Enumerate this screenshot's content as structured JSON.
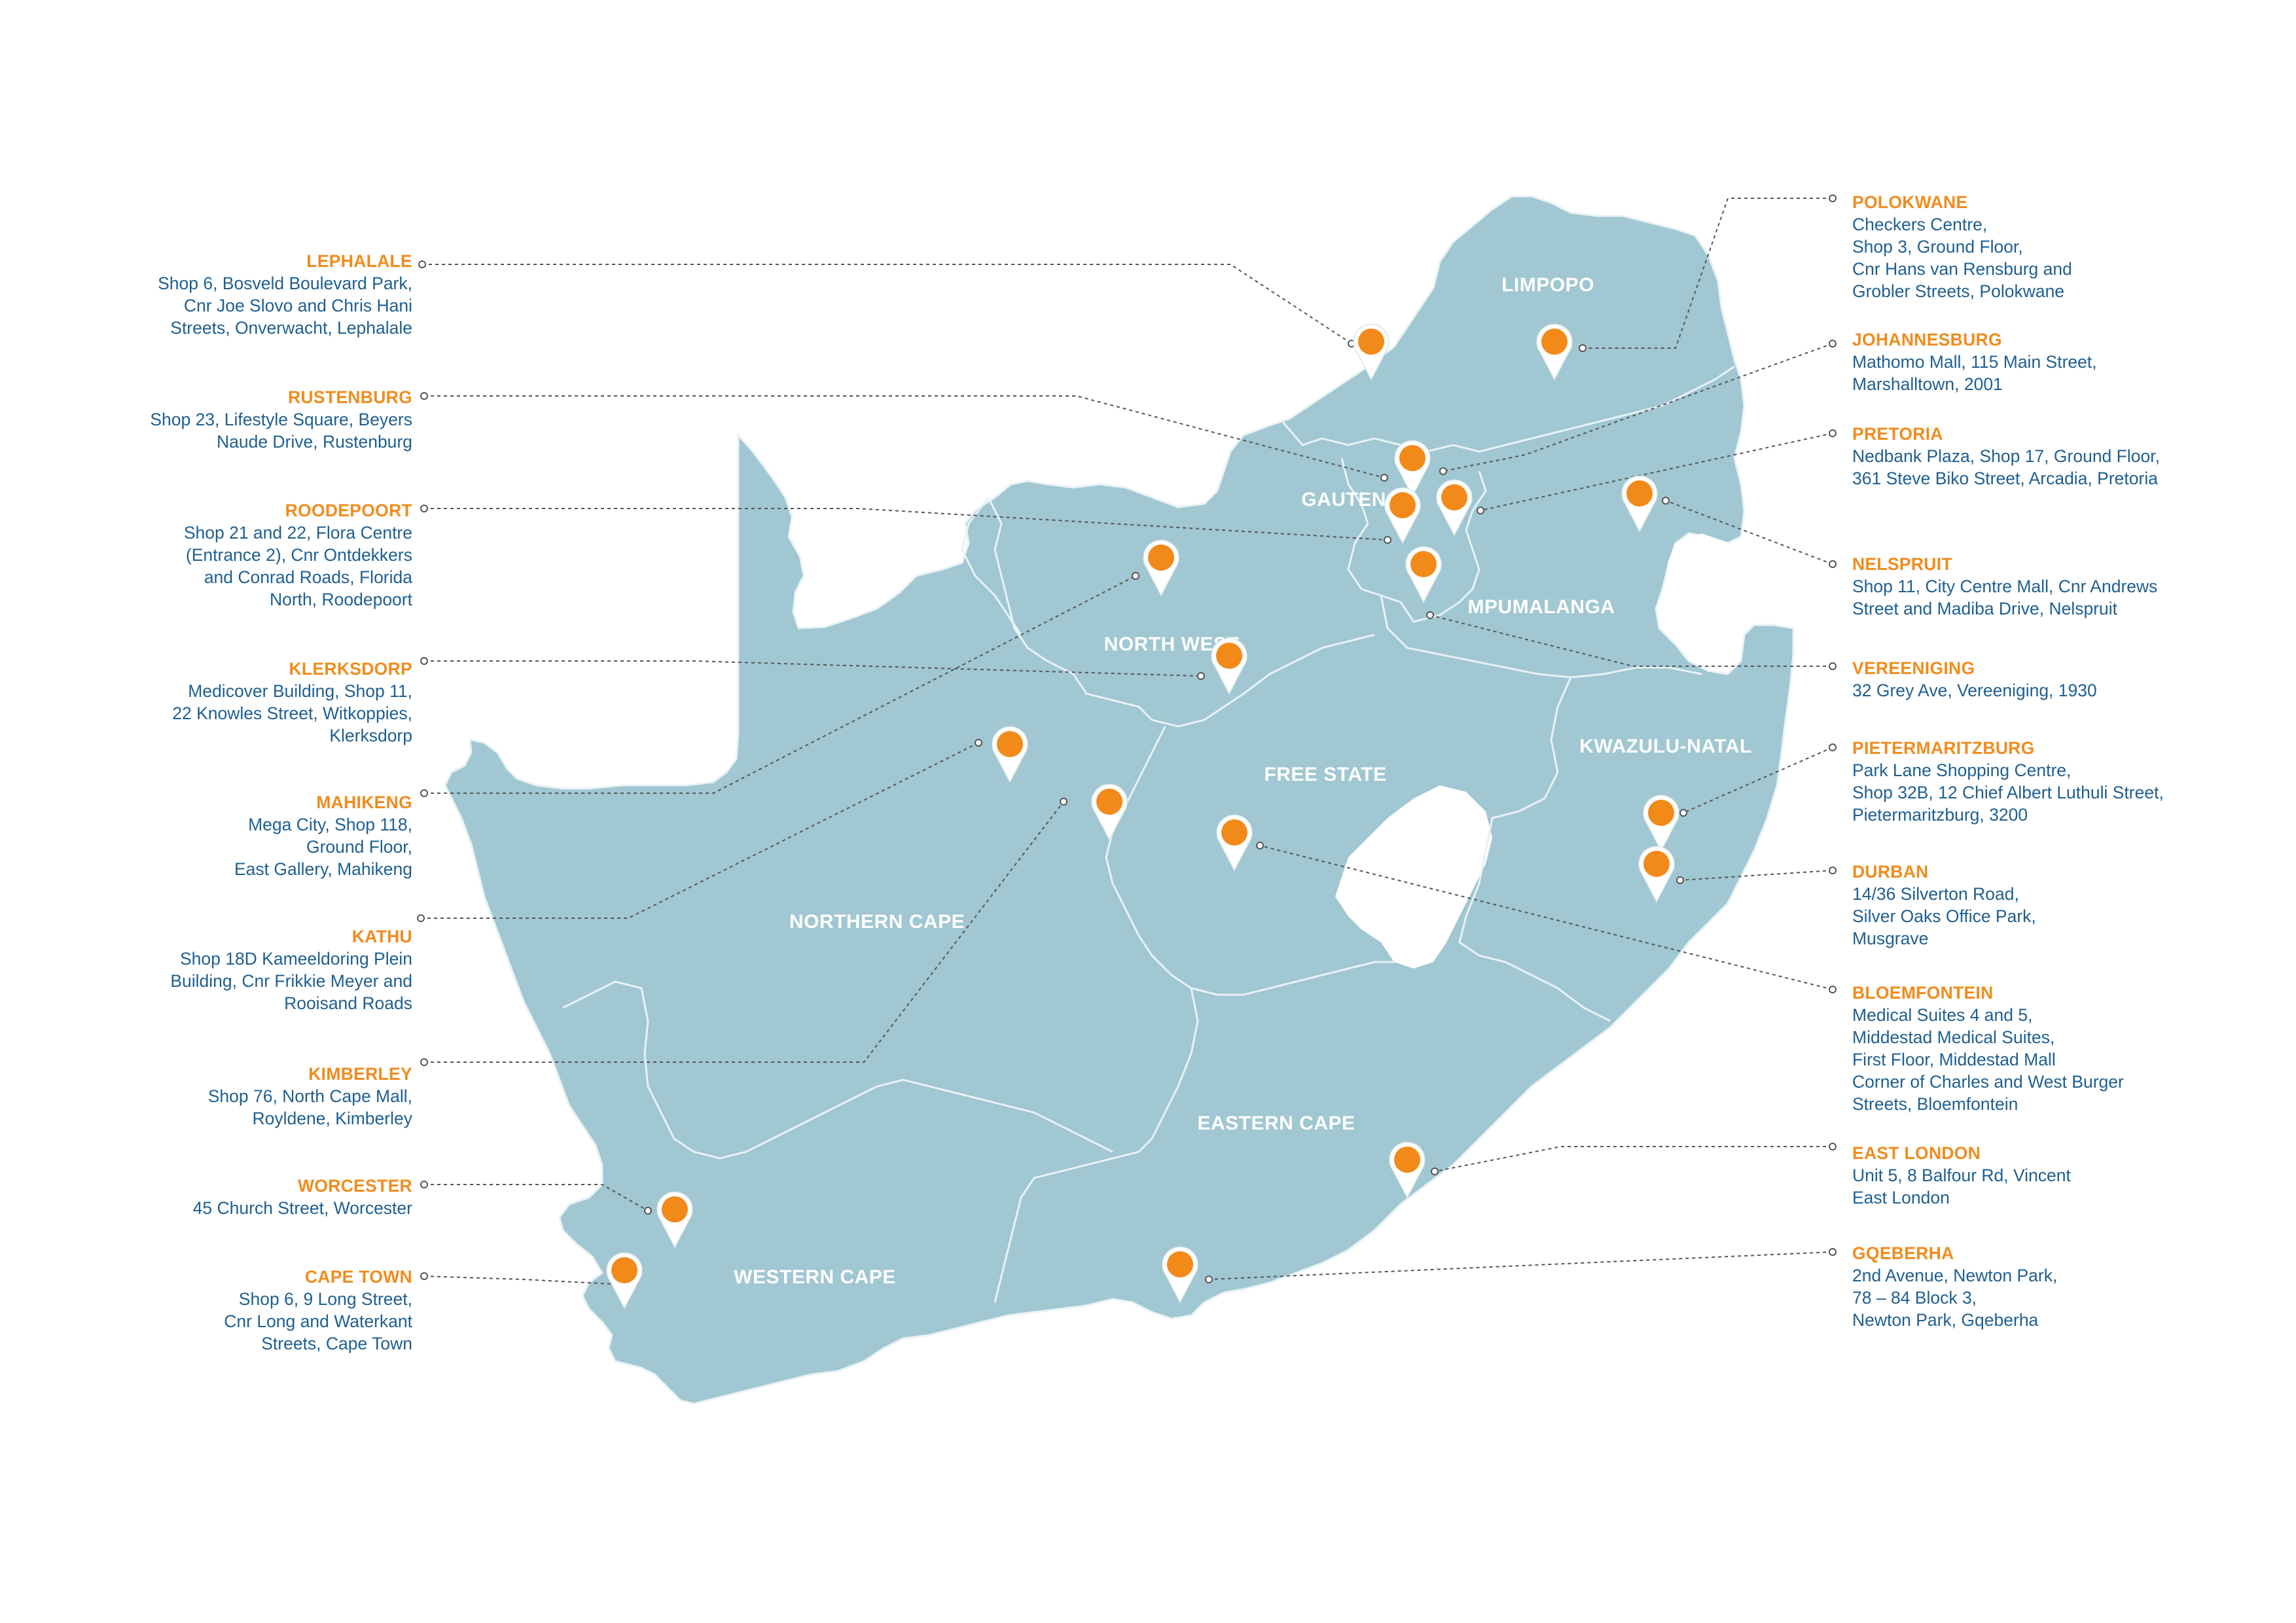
{
  "colors": {
    "land": "#a0c7d2",
    "land_stroke": "#e8f2f5",
    "marker": "#f28a1a",
    "marker_outline": "#ffffff",
    "leader_line": "#555555",
    "location_name": "#f08c1e",
    "address_text": "#1f5f8f",
    "region_label": "#ffffff"
  },
  "regions": {
    "limpopo": "LIMPOPO",
    "gauteng": "GAUTENG",
    "mpumalanga": "MPUMALANGA",
    "north_west": "NORTH WEST",
    "free_state": "FREE STATE",
    "kwazulu_natal": "KWAZULU-NATAL",
    "northern_cape": "NORTHERN CAPE",
    "eastern_cape": "EASTERN CAPE",
    "western_cape": "WESTERN CAPE"
  },
  "locations": {
    "lephalale": {
      "name": "LEPHALALE",
      "address": "Shop 6, Bosveld Boulevard Park,\nCnr Joe Slovo and Chris Hani\nStreets, Onverwacht, Lephalale"
    },
    "rustenburg": {
      "name": "RUSTENBURG",
      "address": "Shop 23, Lifestyle Square, Beyers\nNaude Drive, Rustenburg"
    },
    "roodepoort": {
      "name": "ROODEPOORT",
      "address": "Shop 21 and 22, Flora Centre\n(Entrance 2), Cnr Ontdekkers\nand Conrad Roads, Florida\nNorth, Roodepoort"
    },
    "klerksdorp": {
      "name": "KLERKSDORP",
      "address": "Medicover Building, Shop 11,\n22 Knowles Street, Witkoppies,\nKlerksdorp"
    },
    "mahikeng": {
      "name": "MAHIKENG",
      "address": "Mega City, Shop 118,\nGround Floor,\nEast Gallery, Mahikeng"
    },
    "kathu": {
      "name": "KATHU",
      "address": "Shop 18D Kameeldoring Plein\nBuilding, Cnr Frikkie Meyer and\nRooisand Roads"
    },
    "kimberley": {
      "name": "KIMBERLEY",
      "address": "Shop 76, North Cape Mall,\nRoyldene, Kimberley"
    },
    "worcester": {
      "name": "WORCESTER",
      "address": "45 Church Street, Worcester"
    },
    "cape_town": {
      "name": "CAPE TOWN",
      "address": "Shop 6, 9 Long Street,\nCnr Long and Waterkant\nStreets, Cape Town"
    },
    "polokwane": {
      "name": "POLOKWANE",
      "address": "Checkers Centre,\nShop 3, Ground Floor,\nCnr Hans van Rensburg and\nGrobler Streets, Polokwane"
    },
    "johannesburg": {
      "name": "JOHANNESBURG",
      "address": "Mathomo Mall, 115 Main Street,\nMarshalltown, 2001"
    },
    "pretoria": {
      "name": "PRETORIA",
      "address": "Nedbank Plaza, Shop 17, Ground Floor,\n361 Steve Biko Street, Arcadia, Pretoria"
    },
    "nelspruit": {
      "name": "NELSPRUIT",
      "address": "Shop 11, City Centre Mall, Cnr Andrews\nStreet and Madiba Drive, Nelspruit"
    },
    "vereeniging": {
      "name": "VEREENIGING",
      "address": "32 Grey Ave, Vereeniging, 1930"
    },
    "pietermaritzburg": {
      "name": "PIETERMARITZBURG",
      "address": "Park Lane Shopping Centre,\nShop 32B, 12 Chief Albert Luthuli Street,\nPietermaritzburg, 3200"
    },
    "durban": {
      "name": "DURBAN",
      "address": "14/36 Silverton Road,\nSilver Oaks Office Park,\nMusgrave"
    },
    "bloemfontein": {
      "name": "BLOEMFONTEIN",
      "address": "Medical Suites 4 and 5,\nMiddestad Medical Suites,\nFirst Floor, Middestad Mall\nCorner of Charles and West Burger\nStreets, Bloemfontein"
    },
    "east_london": {
      "name": "EAST LONDON",
      "address": "Unit 5, 8 Balfour Rd, Vincent\nEast London"
    },
    "gqeberha": {
      "name": "GQEBERHA",
      "address": "2nd Avenue, Newton Park,\n78 – 84 Block 3,\nNewton Park, Gqeberha"
    }
  }
}
